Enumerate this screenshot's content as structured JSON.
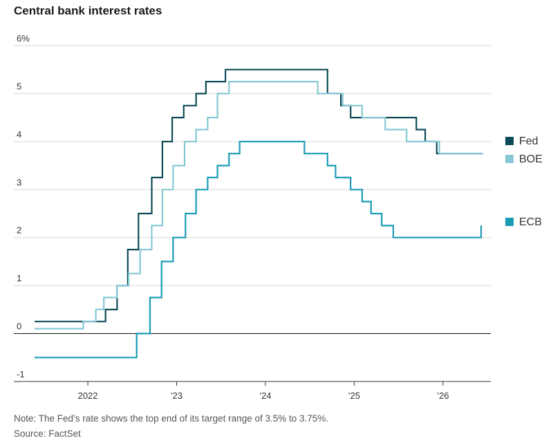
{
  "title": "Central bank interest rates",
  "note": "Note: The Fed’s rate shows the top end of its target range of 3.5% to 3.75%.",
  "source": "Source: FactSet",
  "chart_data": {
    "type": "line",
    "title": "Central bank interest rates",
    "step": true,
    "y_ticks": [
      "6%",
      "5",
      "4",
      "3",
      "2",
      "1",
      "0",
      "-1"
    ],
    "x_ticks": [
      "2022",
      "’23",
      "’24",
      "’25",
      "’26"
    ],
    "ylim": [
      -1,
      6
    ],
    "xlim": [
      2021.4,
      2026.5
    ],
    "grid": true,
    "legend_position": "right",
    "series": [
      {
        "name": "Fed",
        "color": "#0d4a57",
        "points": [
          [
            2021.4,
            0.25
          ],
          [
            2022.2,
            0.25
          ],
          [
            2022.2,
            0.5
          ],
          [
            2022.33,
            0.5
          ],
          [
            2022.33,
            1.0
          ],
          [
            2022.45,
            1.0
          ],
          [
            2022.45,
            1.75
          ],
          [
            2022.57,
            1.75
          ],
          [
            2022.57,
            2.5
          ],
          [
            2022.72,
            2.5
          ],
          [
            2022.72,
            3.25
          ],
          [
            2022.84,
            3.25
          ],
          [
            2022.84,
            4.0
          ],
          [
            2022.95,
            4.0
          ],
          [
            2022.95,
            4.5
          ],
          [
            2023.08,
            4.5
          ],
          [
            2023.08,
            4.75
          ],
          [
            2023.22,
            4.75
          ],
          [
            2023.22,
            5.0
          ],
          [
            2023.33,
            5.0
          ],
          [
            2023.33,
            5.25
          ],
          [
            2023.55,
            5.25
          ],
          [
            2023.55,
            5.5
          ],
          [
            2024.7,
            5.5
          ],
          [
            2024.7,
            5.0
          ],
          [
            2024.85,
            5.0
          ],
          [
            2024.85,
            4.75
          ],
          [
            2024.96,
            4.75
          ],
          [
            2024.96,
            4.5
          ],
          [
            2025.7,
            4.5
          ],
          [
            2025.7,
            4.25
          ],
          [
            2025.8,
            4.25
          ],
          [
            2025.8,
            4.0
          ],
          [
            2025.93,
            4.0
          ],
          [
            2025.93,
            3.75
          ],
          [
            2026.45,
            3.75
          ]
        ]
      },
      {
        "name": "BOE",
        "color": "#86c8d4",
        "points": [
          [
            2021.4,
            0.1
          ],
          [
            2021.95,
            0.1
          ],
          [
            2021.95,
            0.25
          ],
          [
            2022.09,
            0.25
          ],
          [
            2022.09,
            0.5
          ],
          [
            2022.18,
            0.5
          ],
          [
            2022.18,
            0.75
          ],
          [
            2022.33,
            0.75
          ],
          [
            2022.33,
            1.0
          ],
          [
            2022.46,
            1.0
          ],
          [
            2022.46,
            1.25
          ],
          [
            2022.59,
            1.25
          ],
          [
            2022.59,
            1.75
          ],
          [
            2022.72,
            1.75
          ],
          [
            2022.72,
            2.25
          ],
          [
            2022.84,
            2.25
          ],
          [
            2022.84,
            3.0
          ],
          [
            2022.96,
            3.0
          ],
          [
            2022.96,
            3.5
          ],
          [
            2023.09,
            3.5
          ],
          [
            2023.09,
            4.0
          ],
          [
            2023.22,
            4.0
          ],
          [
            2023.22,
            4.25
          ],
          [
            2023.35,
            4.25
          ],
          [
            2023.35,
            4.5
          ],
          [
            2023.46,
            4.5
          ],
          [
            2023.46,
            5.0
          ],
          [
            2023.59,
            5.0
          ],
          [
            2023.59,
            5.25
          ],
          [
            2024.59,
            5.25
          ],
          [
            2024.59,
            5.0
          ],
          [
            2024.87,
            5.0
          ],
          [
            2024.87,
            4.75
          ],
          [
            2025.09,
            4.75
          ],
          [
            2025.09,
            4.5
          ],
          [
            2025.35,
            4.5
          ],
          [
            2025.35,
            4.25
          ],
          [
            2025.59,
            4.25
          ],
          [
            2025.59,
            4.0
          ],
          [
            2025.96,
            4.0
          ],
          [
            2025.96,
            3.75
          ],
          [
            2026.45,
            3.75
          ]
        ]
      },
      {
        "name": "ECB",
        "color": "#1a9bb4",
        "points": [
          [
            2021.4,
            -0.5
          ],
          [
            2022.55,
            -0.5
          ],
          [
            2022.55,
            0.0
          ],
          [
            2022.7,
            0.0
          ],
          [
            2022.7,
            0.75
          ],
          [
            2022.83,
            0.75
          ],
          [
            2022.83,
            1.5
          ],
          [
            2022.96,
            1.5
          ],
          [
            2022.96,
            2.0
          ],
          [
            2023.1,
            2.0
          ],
          [
            2023.1,
            2.5
          ],
          [
            2023.22,
            2.5
          ],
          [
            2023.22,
            3.0
          ],
          [
            2023.35,
            3.0
          ],
          [
            2023.35,
            3.25
          ],
          [
            2023.46,
            3.25
          ],
          [
            2023.46,
            3.5
          ],
          [
            2023.59,
            3.5
          ],
          [
            2023.59,
            3.75
          ],
          [
            2023.71,
            3.75
          ],
          [
            2023.71,
            4.0
          ],
          [
            2024.44,
            4.0
          ],
          [
            2024.44,
            3.75
          ],
          [
            2024.7,
            3.75
          ],
          [
            2024.7,
            3.5
          ],
          [
            2024.79,
            3.5
          ],
          [
            2024.79,
            3.25
          ],
          [
            2024.96,
            3.25
          ],
          [
            2024.96,
            3.0
          ],
          [
            2025.09,
            3.0
          ],
          [
            2025.09,
            2.75
          ],
          [
            2025.19,
            2.75
          ],
          [
            2025.19,
            2.5
          ],
          [
            2025.31,
            2.5
          ],
          [
            2025.31,
            2.25
          ],
          [
            2025.44,
            2.25
          ],
          [
            2025.44,
            2.0
          ],
          [
            2026.43,
            2.0
          ],
          [
            2026.43,
            2.25
          ]
        ]
      }
    ]
  }
}
